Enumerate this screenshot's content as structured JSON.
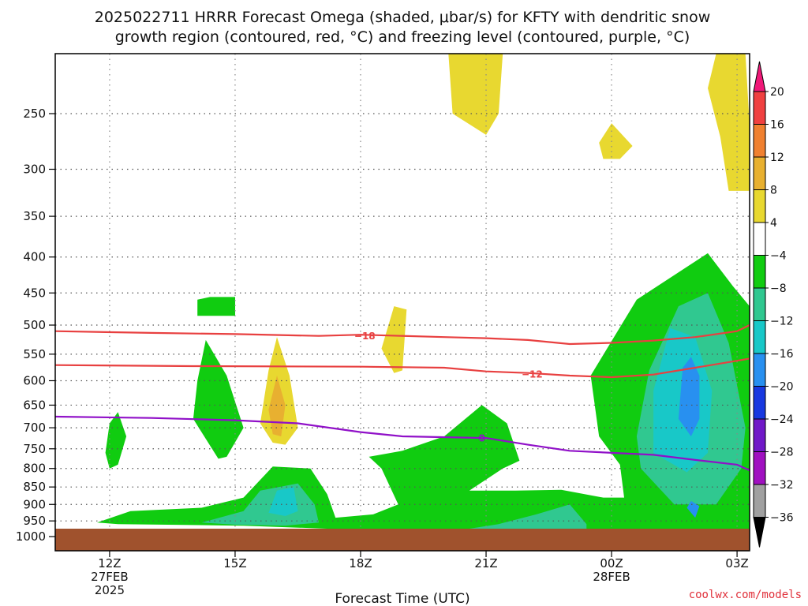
{
  "page": {
    "title_line1": "2025022711 HRRR Forecast Omega (shaded, μbar/s) for KFTY with dendritic snow",
    "title_line2": "growth region (contoured, red, °C) and freezing level (contoured, purple, °C)",
    "credit": "coolwx.com/models"
  },
  "chart_data": {
    "type": "contour",
    "xlabel": "Forecast Time (UTC)",
    "x_range_hours": [
      10.7,
      27.3
    ],
    "y_range_hPa": [
      1000,
      200
    ],
    "y_scale": "log-pressure",
    "grid": "dotted",
    "x_ticks": [
      {
        "hour": 12,
        "line1": "12Z",
        "line2": "27FEB",
        "line3": "2025"
      },
      {
        "hour": 15,
        "line1": "15Z",
        "line2": "",
        "line3": ""
      },
      {
        "hour": 18,
        "line1": "18Z",
        "line2": "",
        "line3": ""
      },
      {
        "hour": 21,
        "line1": "21Z",
        "line2": "",
        "line3": ""
      },
      {
        "hour": 24,
        "line1": "00Z",
        "line2": "28FEB",
        "line3": ""
      },
      {
        "hour": 27,
        "line1": "03Z",
        "line2": "",
        "line3": ""
      }
    ],
    "y_ticks": [
      250,
      300,
      350,
      400,
      450,
      500,
      550,
      600,
      650,
      700,
      750,
      800,
      850,
      900,
      950,
      1000
    ],
    "y_tick_labels": [
      "250",
      "300",
      "350",
      "400",
      "450",
      "500",
      "550",
      "600",
      "650",
      "700",
      "750",
      "800",
      "850",
      "900",
      "950",
      "1000"
    ],
    "colorbar": {
      "labels": [
        "20",
        "16",
        "12",
        "8",
        "4",
        "−4",
        "−8",
        "−12",
        "−16",
        "−20",
        "−24",
        "−28",
        "−32",
        "−36"
      ],
      "colors": [
        "#f01878",
        "#f04040",
        "#f08030",
        "#e8b030",
        "#e8d830",
        "#ffffff",
        "#10cc10",
        "#30c890",
        "#18c8c8",
        "#2890f0",
        "#1838e0",
        "#7018c8",
        "#a010c0",
        "#a0a0a0",
        "#000000"
      ]
    },
    "contours": [
      {
        "name": "-18",
        "label": "−18",
        "color": "#e84040",
        "points": [
          [
            10.7,
            510
          ],
          [
            13,
            513
          ],
          [
            15,
            515
          ],
          [
            17,
            518
          ],
          [
            18,
            516
          ],
          [
            20,
            520
          ],
          [
            21,
            522
          ],
          [
            22,
            525
          ],
          [
            23,
            532
          ],
          [
            24,
            530
          ],
          [
            25,
            526
          ],
          [
            26,
            520
          ],
          [
            27,
            510
          ],
          [
            27.3,
            500
          ]
        ]
      },
      {
        "name": "-12",
        "label": "−12",
        "color": "#e84040",
        "points": [
          [
            10.7,
            570
          ],
          [
            14,
            572
          ],
          [
            18,
            573
          ],
          [
            20,
            575
          ],
          [
            21,
            582
          ],
          [
            22,
            585
          ],
          [
            23,
            590
          ],
          [
            24,
            593
          ],
          [
            25,
            588
          ],
          [
            26,
            575
          ],
          [
            27,
            562
          ],
          [
            27.3,
            558
          ]
        ]
      },
      {
        "name": "0",
        "label": "0",
        "color": "#9010c8",
        "points": [
          [
            10.7,
            675
          ],
          [
            13,
            678
          ],
          [
            15,
            683
          ],
          [
            16.5,
            690
          ],
          [
            18,
            710
          ],
          [
            19,
            720
          ],
          [
            21,
            724
          ],
          [
            22,
            740
          ],
          [
            23,
            755
          ],
          [
            25,
            765
          ],
          [
            26,
            778
          ],
          [
            27,
            790
          ],
          [
            27.3,
            805
          ]
        ]
      }
    ],
    "omega_regions": [
      {
        "name": "updraft-minus4",
        "value": -4,
        "color": "#10cc10",
        "points": [
          [
            11.7,
            955
          ],
          [
            12.5,
            920
          ],
          [
            14.2,
            910
          ],
          [
            15.2,
            880
          ],
          [
            15.9,
            795
          ],
          [
            16.8,
            800
          ],
          [
            17.2,
            870
          ],
          [
            17.4,
            940
          ],
          [
            18.3,
            930
          ],
          [
            18.9,
            900
          ],
          [
            18.5,
            800
          ],
          [
            18.2,
            770
          ],
          [
            19,
            755
          ],
          [
            20,
            720
          ],
          [
            20.9,
            650
          ],
          [
            21.5,
            690
          ],
          [
            21.8,
            780
          ],
          [
            21.4,
            800
          ],
          [
            20.6,
            860
          ],
          [
            21.7,
            860
          ],
          [
            22.8,
            858
          ],
          [
            23.8,
            880
          ],
          [
            24.3,
            880
          ],
          [
            24.2,
            790
          ],
          [
            23.7,
            720
          ],
          [
            23.5,
            590
          ],
          [
            24.6,
            460
          ],
          [
            26.3,
            395
          ],
          [
            26.9,
            440
          ],
          [
            27.4,
            470
          ],
          [
            27.6,
            640
          ],
          [
            27.6,
            960
          ],
          [
            27.6,
            975
          ],
          [
            20.9,
            975
          ],
          [
            17.2,
            975
          ],
          [
            15.2,
            965
          ],
          [
            12.2,
            960
          ]
        ]
      },
      {
        "name": "updraft-minus4-small-a",
        "value": -4,
        "color": "#10cc10",
        "points": [
          [
            11.9,
            760
          ],
          [
            12,
            690
          ],
          [
            12.2,
            665
          ],
          [
            12.4,
            720
          ],
          [
            12.2,
            790
          ],
          [
            12,
            800
          ]
        ]
      },
      {
        "name": "updraft-minus4-small-b",
        "value": -4,
        "color": "#10cc10",
        "points": [
          [
            14,
            680
          ],
          [
            14.1,
            600
          ],
          [
            14.3,
            525
          ],
          [
            14.8,
            590
          ],
          [
            15.2,
            700
          ],
          [
            14.8,
            770
          ],
          [
            14.6,
            775
          ]
        ]
      },
      {
        "name": "updraft-minus4-small-c",
        "value": -4,
        "color": "#10cc10",
        "points": [
          [
            14.1,
            460
          ],
          [
            14.4,
            456
          ],
          [
            15,
            456
          ],
          [
            15,
            485
          ],
          [
            14.1,
            485
          ]
        ]
      },
      {
        "name": "updraft-minus8",
        "value": -8,
        "color": "#30c890",
        "points": [
          [
            14.2,
            955
          ],
          [
            15.2,
            920
          ],
          [
            15.6,
            860
          ],
          [
            16.5,
            840
          ],
          [
            16.9,
            900
          ],
          [
            17,
            955
          ],
          [
            16.2,
            965
          ],
          [
            15,
            962
          ]
        ]
      },
      {
        "name": "updraft-minus8-b",
        "value": -8,
        "color": "#30c890",
        "points": [
          [
            20.6,
            975
          ],
          [
            21.3,
            960
          ],
          [
            22.2,
            930
          ],
          [
            23,
            900
          ],
          [
            23.4,
            960
          ],
          [
            23.4,
            975
          ]
        ]
      },
      {
        "name": "updraft-minus8-c",
        "value": -8,
        "color": "#30c890",
        "points": [
          [
            24.7,
            800
          ],
          [
            24.6,
            720
          ],
          [
            24.9,
            580
          ],
          [
            25.6,
            470
          ],
          [
            26.3,
            450
          ],
          [
            26.8,
            530
          ],
          [
            27.2,
            700
          ],
          [
            27.1,
            800
          ],
          [
            26.5,
            900
          ],
          [
            25.5,
            900
          ]
        ]
      },
      {
        "name": "updraft-minus12",
        "value": -12,
        "color": "#18c8c8",
        "points": [
          [
            15.8,
            925
          ],
          [
            16,
            860
          ],
          [
            16.4,
            850
          ],
          [
            16.5,
            920
          ],
          [
            16.2,
            935
          ]
        ]
      },
      {
        "name": "updraft-minus12-b",
        "value": -12,
        "color": "#18c8c8",
        "points": [
          [
            25,
            760
          ],
          [
            25,
            620
          ],
          [
            25.4,
            505
          ],
          [
            26,
            520
          ],
          [
            26.4,
            620
          ],
          [
            26.3,
            760
          ],
          [
            25.8,
            810
          ]
        ]
      },
      {
        "name": "updraft-minus16",
        "value": -16,
        "color": "#2890f0",
        "points": [
          [
            25.6,
            680
          ],
          [
            25.7,
            575
          ],
          [
            25.9,
            555
          ],
          [
            26.1,
            590
          ],
          [
            26.1,
            680
          ],
          [
            25.9,
            720
          ]
        ]
      },
      {
        "name": "updraft-minus16-b",
        "value": -16,
        "color": "#2890f0",
        "points": [
          [
            25.8,
            910
          ],
          [
            25.9,
            890
          ],
          [
            26.1,
            905
          ],
          [
            26.0,
            940
          ]
        ]
      },
      {
        "name": "subsidence-plus4-a",
        "value": 4,
        "color": "#e8d830",
        "points": [
          [
            20.1,
            200
          ],
          [
            21.4,
            200
          ],
          [
            21.3,
            250
          ],
          [
            21,
            268
          ],
          [
            20.2,
            250
          ]
        ]
      },
      {
        "name": "subsidence-plus4-b",
        "value": 4,
        "color": "#e8d830",
        "points": [
          [
            26.5,
            200
          ],
          [
            27.2,
            200
          ],
          [
            27.5,
            260
          ],
          [
            27.8,
            280
          ],
          [
            27.6,
            322
          ],
          [
            26.8,
            322
          ],
          [
            26.6,
            270
          ],
          [
            26.3,
            230
          ]
        ]
      },
      {
        "name": "subsidence-plus4-c",
        "value": 4,
        "color": "#e8d830",
        "points": [
          [
            23.7,
            275
          ],
          [
            24,
            258
          ],
          [
            24.5,
            278
          ],
          [
            24.2,
            290
          ],
          [
            23.8,
            290
          ]
        ]
      },
      {
        "name": "subsidence-plus4-d",
        "value": 4,
        "color": "#e8d830",
        "points": [
          [
            18.5,
            540
          ],
          [
            18.8,
            470
          ],
          [
            19.1,
            475
          ],
          [
            19.0,
            580
          ],
          [
            18.8,
            585
          ]
        ]
      },
      {
        "name": "subsidence-plus4-e",
        "value": 4,
        "color": "#e8d830",
        "points": [
          [
            15.6,
            690
          ],
          [
            15.8,
            580
          ],
          [
            16,
            520
          ],
          [
            16.3,
            590
          ],
          [
            16.5,
            700
          ],
          [
            16.2,
            740
          ],
          [
            15.9,
            735
          ]
        ]
      },
      {
        "name": "subsidence-plus8-e",
        "value": 8,
        "color": "#e8b030",
        "points": [
          [
            15.8,
            660
          ],
          [
            16,
            590
          ],
          [
            16.2,
            650
          ],
          [
            16.1,
            720
          ],
          [
            15.9,
            715
          ]
        ]
      }
    ]
  }
}
